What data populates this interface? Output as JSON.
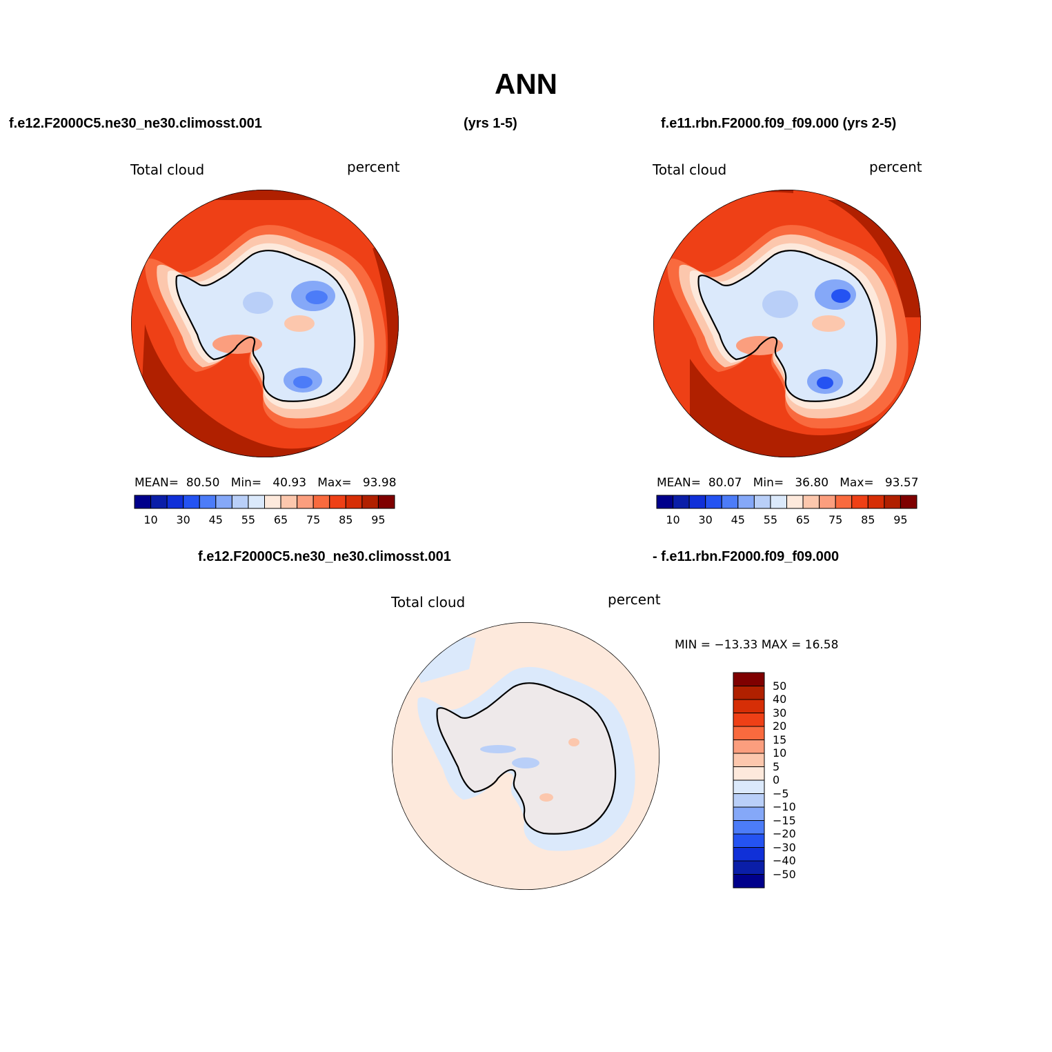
{
  "title": "ANN",
  "headers": {
    "left": "f.e12.F2000C5.ne30_ne30.climosst.001",
    "middle": "(yrs 1-5)",
    "right": "f.e11.rbn.F2000.f09_f09.000 (yrs 2-5)",
    "diff_left": "f.e12.F2000C5.ne30_ne30.climosst.001",
    "diff_right": "- f.e11.rbn.F2000.f09_f09.000"
  },
  "panels": [
    {
      "variable": "Total cloud",
      "units": "percent",
      "stats": {
        "mean_label": "MEAN=",
        "mean": "80.50",
        "min_label": "Min=",
        "min": "40.93",
        "max_label": "Max=",
        "max": "93.98"
      }
    },
    {
      "variable": "Total cloud",
      "units": "percent",
      "stats": {
        "mean_label": "MEAN=",
        "mean": "80.07",
        "min_label": "Min=",
        "min": "36.80",
        "max_label": "Max=",
        "max": "93.57"
      }
    }
  ],
  "diff_panel": {
    "variable": "Total cloud",
    "units": "percent",
    "minmax": "MIN = −13.33  MAX =   16.58"
  },
  "colorbar_abs": {
    "colors": [
      "#00008b",
      "#0a1ea8",
      "#1030d8",
      "#2453f2",
      "#4c7cf8",
      "#85a8f8",
      "#b9cff8",
      "#dbe9fb",
      "#fde9dc",
      "#fcc7ad",
      "#fb9e7e",
      "#f96a3e",
      "#ee4016",
      "#d62e06",
      "#b02000",
      "#7f0000"
    ],
    "tick_labels": [
      "10",
      "30",
      "45",
      "55",
      "65",
      "75",
      "85",
      "95"
    ]
  },
  "colorbar_diff": {
    "colors": [
      "#7f0000",
      "#b02000",
      "#d62e06",
      "#ee4016",
      "#f96a3e",
      "#fb9e7e",
      "#fcc7ad",
      "#fde9dc",
      "#dbe9fb",
      "#b9cff8",
      "#85a8f8",
      "#4c7cf8",
      "#2453f2",
      "#1030d8",
      "#0a1ea8",
      "#00008b"
    ],
    "tick_labels": [
      "50",
      "40",
      "30",
      "20",
      "15",
      "10",
      "5",
      "0",
      "−5",
      "−10",
      "−15",
      "−20",
      "−30",
      "−40",
      "−50"
    ]
  }
}
